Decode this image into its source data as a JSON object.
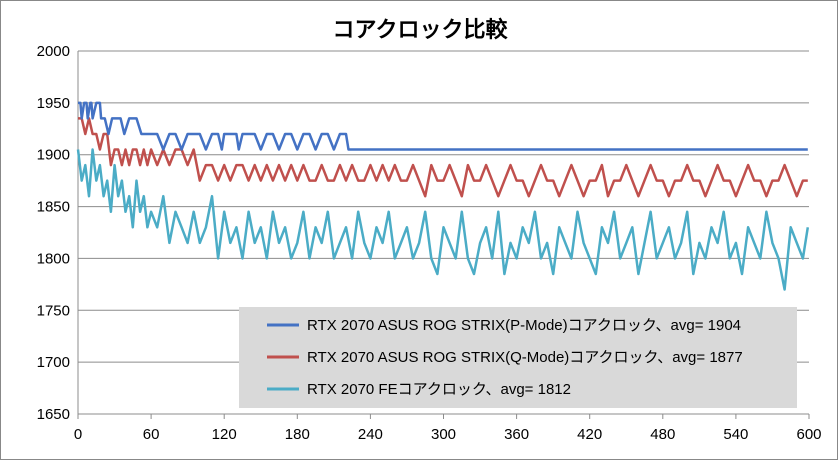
{
  "chart_data": {
    "type": "line",
    "title": "コアクロック比較",
    "xlabel": "",
    "ylabel": "",
    "xlim": [
      0,
      600
    ],
    "ylim": [
      1650,
      2000
    ],
    "xticks": [
      0,
      60,
      120,
      180,
      240,
      300,
      360,
      420,
      480,
      540,
      600
    ],
    "yticks": [
      1650,
      1700,
      1750,
      1800,
      1850,
      1900,
      1950,
      2000
    ],
    "grid": "horizontal",
    "legend_position": "bottom-right",
    "series": [
      {
        "name": "RTX 2070 ASUS ROG STRIX(P-Mode)コアクロック、avg= 1904",
        "color": "#4472C4",
        "x": [
          0,
          2,
          3,
          5,
          7,
          8,
          10,
          11,
          12,
          15,
          18,
          19,
          22,
          25,
          28,
          30,
          35,
          38,
          42,
          48,
          52,
          55,
          60,
          65,
          70,
          75,
          80,
          85,
          90,
          95,
          100,
          105,
          110,
          115,
          118,
          120,
          125,
          130,
          132,
          135,
          140,
          145,
          150,
          155,
          160,
          165,
          170,
          175,
          180,
          185,
          190,
          195,
          200,
          205,
          210,
          215,
          218,
          220,
          222,
          225,
          230,
          240,
          250,
          260,
          270,
          280,
          290,
          300,
          310,
          320,
          330,
          340,
          350,
          360,
          370,
          380,
          390,
          400,
          410,
          420,
          430,
          440,
          450,
          460,
          470,
          480,
          490,
          500,
          510,
          520,
          530,
          540,
          550,
          560,
          570,
          580,
          590,
          599
        ],
        "values": [
          1950,
          1950,
          1935,
          1950,
          1950,
          1935,
          1950,
          1950,
          1935,
          1950,
          1950,
          1935,
          1935,
          1920,
          1935,
          1935,
          1935,
          1920,
          1935,
          1935,
          1920,
          1920,
          1920,
          1920,
          1905,
          1920,
          1920,
          1905,
          1920,
          1920,
          1920,
          1905,
          1920,
          1920,
          1905,
          1920,
          1920,
          1920,
          1905,
          1920,
          1920,
          1920,
          1905,
          1920,
          1920,
          1905,
          1920,
          1920,
          1905,
          1920,
          1920,
          1905,
          1920,
          1920,
          1905,
          1920,
          1920,
          1920,
          1905,
          1905,
          1905,
          1905,
          1905,
          1905,
          1905,
          1905,
          1905,
          1905,
          1905,
          1905,
          1905,
          1905,
          1905,
          1905,
          1905,
          1905,
          1905,
          1905,
          1905,
          1905,
          1905,
          1905,
          1905,
          1905,
          1905,
          1905,
          1905,
          1905,
          1905,
          1905,
          1905,
          1905,
          1905,
          1905,
          1905,
          1905,
          1905,
          1905
        ]
      },
      {
        "name": "RTX 2070 ASUS ROG STRIX(Q-Mode)コアクロック、avg= 1877",
        "color": "#C0504D",
        "x": [
          0,
          3,
          6,
          9,
          12,
          15,
          18,
          21,
          24,
          27,
          30,
          33,
          36,
          39,
          42,
          45,
          48,
          51,
          54,
          57,
          60,
          65,
          70,
          75,
          80,
          85,
          90,
          95,
          100,
          105,
          110,
          115,
          120,
          125,
          130,
          135,
          140,
          145,
          150,
          155,
          160,
          165,
          170,
          175,
          180,
          185,
          190,
          195,
          200,
          205,
          210,
          215,
          220,
          225,
          230,
          235,
          240,
          245,
          250,
          255,
          260,
          265,
          270,
          275,
          280,
          285,
          290,
          295,
          300,
          305,
          310,
          315,
          320,
          325,
          330,
          335,
          340,
          345,
          350,
          355,
          360,
          365,
          370,
          375,
          380,
          385,
          390,
          395,
          400,
          405,
          410,
          415,
          420,
          425,
          430,
          435,
          440,
          445,
          450,
          455,
          460,
          465,
          470,
          475,
          480,
          485,
          490,
          495,
          500,
          505,
          510,
          515,
          520,
          525,
          530,
          535,
          540,
          545,
          550,
          555,
          560,
          565,
          570,
          575,
          580,
          585,
          590,
          595,
          599
        ],
        "values": [
          1935,
          1935,
          1920,
          1935,
          1920,
          1920,
          1905,
          1920,
          1920,
          1890,
          1905,
          1905,
          1890,
          1905,
          1890,
          1905,
          1905,
          1890,
          1905,
          1890,
          1905,
          1890,
          1905,
          1890,
          1905,
          1905,
          1890,
          1905,
          1875,
          1890,
          1890,
          1875,
          1890,
          1875,
          1890,
          1890,
          1875,
          1890,
          1875,
          1890,
          1875,
          1890,
          1875,
          1890,
          1875,
          1890,
          1875,
          1875,
          1890,
          1875,
          1875,
          1890,
          1875,
          1890,
          1875,
          1875,
          1890,
          1875,
          1890,
          1875,
          1890,
          1875,
          1875,
          1890,
          1875,
          1860,
          1890,
          1875,
          1875,
          1890,
          1875,
          1860,
          1890,
          1875,
          1875,
          1890,
          1875,
          1860,
          1875,
          1890,
          1875,
          1875,
          1860,
          1875,
          1890,
          1875,
          1875,
          1860,
          1875,
          1890,
          1875,
          1860,
          1875,
          1875,
          1890,
          1860,
          1875,
          1875,
          1890,
          1875,
          1860,
          1875,
          1890,
          1875,
          1875,
          1860,
          1875,
          1875,
          1890,
          1875,
          1875,
          1860,
          1875,
          1890,
          1875,
          1875,
          1860,
          1875,
          1890,
          1875,
          1875,
          1860,
          1875,
          1875,
          1890,
          1875,
          1860,
          1875,
          1875
        ]
      },
      {
        "name": "RTX 2070 FEコアクロック、avg= 1812",
        "color": "#4BACC6",
        "x": [
          0,
          3,
          6,
          9,
          12,
          15,
          18,
          21,
          24,
          27,
          30,
          33,
          36,
          39,
          42,
          45,
          48,
          51,
          54,
          57,
          60,
          65,
          70,
          75,
          80,
          85,
          90,
          95,
          100,
          105,
          110,
          115,
          120,
          125,
          130,
          135,
          140,
          145,
          150,
          155,
          160,
          165,
          170,
          175,
          180,
          185,
          190,
          195,
          200,
          205,
          210,
          215,
          220,
          225,
          230,
          235,
          240,
          245,
          250,
          255,
          260,
          265,
          270,
          275,
          280,
          285,
          290,
          295,
          300,
          305,
          310,
          315,
          320,
          325,
          330,
          335,
          340,
          345,
          350,
          355,
          360,
          365,
          370,
          375,
          380,
          385,
          390,
          395,
          400,
          405,
          410,
          415,
          420,
          425,
          430,
          435,
          440,
          445,
          450,
          455,
          460,
          465,
          470,
          475,
          480,
          485,
          490,
          495,
          500,
          505,
          510,
          515,
          520,
          525,
          530,
          535,
          540,
          545,
          550,
          555,
          560,
          565,
          570,
          575,
          580,
          585,
          590,
          595,
          599
        ],
        "values": [
          1905,
          1875,
          1890,
          1860,
          1905,
          1875,
          1890,
          1860,
          1875,
          1845,
          1890,
          1860,
          1875,
          1845,
          1860,
          1830,
          1875,
          1845,
          1860,
          1830,
          1845,
          1830,
          1860,
          1815,
          1845,
          1830,
          1815,
          1845,
          1815,
          1830,
          1860,
          1800,
          1845,
          1815,
          1830,
          1800,
          1845,
          1815,
          1830,
          1800,
          1845,
          1815,
          1830,
          1800,
          1815,
          1845,
          1800,
          1830,
          1815,
          1845,
          1800,
          1815,
          1830,
          1800,
          1845,
          1815,
          1800,
          1830,
          1815,
          1845,
          1800,
          1815,
          1830,
          1800,
          1815,
          1845,
          1800,
          1785,
          1830,
          1815,
          1800,
          1845,
          1800,
          1785,
          1815,
          1830,
          1800,
          1845,
          1785,
          1815,
          1800,
          1830,
          1815,
          1845,
          1800,
          1815,
          1785,
          1830,
          1815,
          1800,
          1845,
          1815,
          1800,
          1785,
          1830,
          1815,
          1845,
          1800,
          1815,
          1830,
          1785,
          1815,
          1845,
          1800,
          1815,
          1830,
          1800,
          1815,
          1845,
          1785,
          1815,
          1800,
          1830,
          1815,
          1845,
          1800,
          1815,
          1785,
          1830,
          1815,
          1800,
          1845,
          1815,
          1800,
          1770,
          1830,
          1815,
          1800,
          1830
        ]
      }
    ]
  }
}
